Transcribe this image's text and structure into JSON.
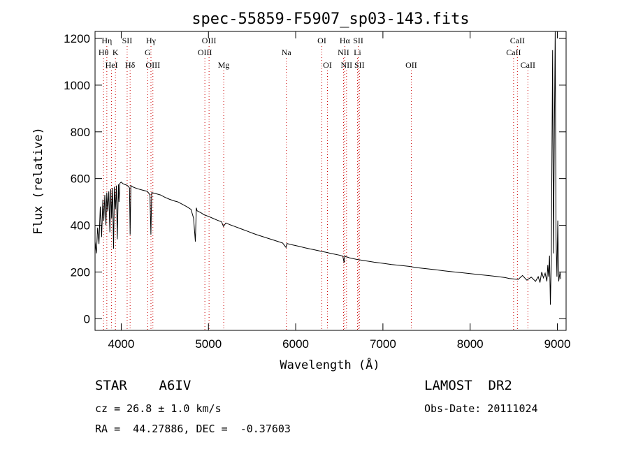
{
  "chart_data": {
    "type": "line",
    "title": "spec-55859-F5907_sp03-143.fits",
    "xlabel": "Wavelength (Å)",
    "ylabel": "Flux (relative)",
    "xlim": [
      3700,
      9100
    ],
    "ylim": [
      -50,
      1230
    ],
    "xticks": [
      4000,
      5000,
      6000,
      7000,
      8000,
      9000
    ],
    "yticks": [
      0,
      200,
      400,
      600,
      800,
      1000,
      1200
    ],
    "grid": false,
    "series": [
      {
        "x": [
          3700,
          3715,
          3730,
          3745,
          3760,
          3775,
          3790,
          3800,
          3812,
          3825,
          3835,
          3845,
          3858,
          3870,
          3880,
          3890,
          3900,
          3912,
          3922,
          3935,
          3945,
          3955,
          3968,
          3975,
          3985,
          4000,
          4020,
          4040,
          4060,
          4080,
          4095,
          4102,
          4110,
          4130,
          4160,
          4200,
          4250,
          4300,
          4330,
          4340,
          4350,
          4400,
          4450,
          4500,
          4550,
          4600,
          4650,
          4700,
          4750,
          4800,
          4830,
          4850,
          4861,
          4870,
          4890,
          4920,
          4950,
          5000,
          5050,
          5100,
          5150,
          5172,
          5200,
          5250,
          5300,
          5350,
          5400,
          5450,
          5500,
          5550,
          5600,
          5650,
          5700,
          5750,
          5800,
          5850,
          5890,
          5900,
          5950,
          6000,
          6050,
          6100,
          6150,
          6200,
          6250,
          6300,
          6350,
          6400,
          6450,
          6500,
          6540,
          6555,
          6563,
          6570,
          6590,
          6620,
          6650,
          6700,
          6800,
          6900,
          7000,
          7100,
          7200,
          7300,
          7400,
          7500,
          7600,
          7700,
          7800,
          7900,
          8000,
          8100,
          8200,
          8300,
          8400,
          8450,
          8500,
          8550,
          8600,
          8650,
          8700,
          8750,
          8780,
          8800,
          8820,
          8840,
          8860,
          8880,
          8890,
          8900,
          8910,
          8920,
          8930,
          8945,
          8955,
          8965,
          8975,
          8985,
          8995,
          9005,
          9015,
          9030,
          9040
        ],
        "y": [
          330,
          280,
          390,
          320,
          480,
          350,
          510,
          420,
          530,
          400,
          540,
          460,
          545,
          370,
          555,
          430,
          560,
          300,
          565,
          470,
          570,
          340,
          575,
          500,
          580,
          585,
          578,
          575,
          572,
          568,
          560,
          360,
          570,
          565,
          560,
          555,
          550,
          545,
          530,
          360,
          540,
          535,
          530,
          520,
          512,
          505,
          500,
          490,
          480,
          468,
          430,
          330,
          475,
          462,
          458,
          452,
          445,
          438,
          430,
          422,
          415,
          395,
          410,
          402,
          395,
          388,
          381,
          374,
          367,
          360,
          354,
          348,
          342,
          336,
          330,
          324,
          305,
          322,
          317,
          313,
          309,
          304,
          300,
          296,
          292,
          288,
          284,
          280,
          276,
          272,
          268,
          240,
          270,
          266,
          264,
          260,
          258,
          254,
          248,
          242,
          237,
          232,
          228,
          224,
          218,
          214,
          210,
          205,
          201,
          197,
          193,
          189,
          185,
          181,
          176,
          172,
          170,
          168,
          185,
          165,
          178,
          160,
          180,
          155,
          200,
          175,
          195,
          160,
          230,
          180,
          270,
          60,
          250,
          1150,
          280,
          760,
          1250,
          350,
          180,
          420,
          160,
          200,
          170
        ]
      }
    ],
    "spectral_lines": [
      {
        "label": "Hη",
        "wavelength": 3835,
        "row": 1
      },
      {
        "label": "SII",
        "wavelength": 4068,
        "row": 1
      },
      {
        "label": "Hγ",
        "wavelength": 4341,
        "row": 1
      },
      {
        "label": "OIII",
        "wavelength": 5007,
        "row": 1
      },
      {
        "label": "OI",
        "wavelength": 6300,
        "row": 1
      },
      {
        "label": "Hα",
        "wavelength": 6563,
        "row": 1
      },
      {
        "label": "SII",
        "wavelength": 6717,
        "row": 1
      },
      {
        "label": "CaII",
        "wavelength": 8542,
        "row": 1
      },
      {
        "label": "Hθ",
        "wavelength": 3797,
        "row": 2
      },
      {
        "label": "K",
        "wavelength": 3934,
        "row": 2
      },
      {
        "label": "G",
        "wavelength": 4304,
        "row": 2
      },
      {
        "label": "OIII",
        "wavelength": 4959,
        "row": 2
      },
      {
        "label": "Na",
        "wavelength": 5893,
        "row": 2
      },
      {
        "label": "NII",
        "wavelength": 6548,
        "row": 2
      },
      {
        "label": "Li",
        "wavelength": 6708,
        "row": 2
      },
      {
        "label": "CaII",
        "wavelength": 8498,
        "row": 2
      },
      {
        "label": "HeI",
        "wavelength": 3889,
        "row": 3
      },
      {
        "label": "Hδ",
        "wavelength": 4102,
        "row": 3
      },
      {
        "label": "OIII",
        "wavelength": 4363,
        "row": 3
      },
      {
        "label": "Mg",
        "wavelength": 5175,
        "row": 3
      },
      {
        "label": "OI",
        "wavelength": 6364,
        "row": 3
      },
      {
        "label": "NII",
        "wavelength": 6583,
        "row": 3
      },
      {
        "label": "SII",
        "wavelength": 6731,
        "row": 3
      },
      {
        "label": "OII",
        "wavelength": 7325,
        "row": 3
      },
      {
        "label": "CaII",
        "wavelength": 8662,
        "row": 3
      }
    ],
    "line_color": "#000000",
    "marker_color": "#cc0000"
  },
  "info": {
    "object_type": "STAR    A6IV",
    "survey": "LAMOST  DR2",
    "redshift": "cz = 26.8 ± 1.0 km/s",
    "obs_date": "Obs-Date: 20111024",
    "coords": "RA =  44.27886, DEC =  -0.37603"
  }
}
